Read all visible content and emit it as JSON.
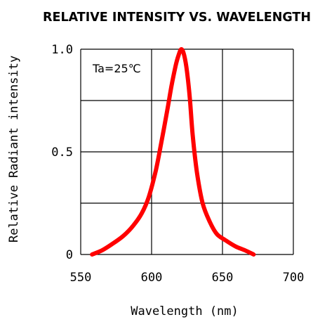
{
  "chart_data": {
    "type": "line",
    "title": "RELATIVE INTENSITY VS. WAVELENGTH",
    "xlabel": "Wavelength (nm)",
    "ylabel": "Relative Radiant intensity",
    "annotation": "Ta=25℃",
    "xlim": [
      550,
      700
    ],
    "ylim": [
      0,
      1.0
    ],
    "x_ticks": [
      {
        "value": 550,
        "label": "550"
      },
      {
        "value": 600,
        "label": "600"
      },
      {
        "value": 650,
        "label": "650"
      },
      {
        "value": 700,
        "label": "700"
      }
    ],
    "y_ticks": [
      {
        "value": 0,
        "label": "0"
      },
      {
        "value": 0.5,
        "label": "0.5"
      },
      {
        "value": 1.0,
        "label": "1.0"
      }
    ],
    "x_grid": [
      550,
      600,
      650,
      700
    ],
    "y_grid": [
      0,
      0.25,
      0.5,
      0.75,
      1.0
    ],
    "grid": true,
    "line_color": "#ff0000",
    "series": [
      {
        "x": [
          558,
          565,
          572,
          580,
          587,
          593,
          598,
          603,
          607,
          611,
          614,
          617,
          619,
          621,
          623,
          625,
          627,
          629,
          632,
          636,
          641,
          646,
          652,
          659,
          666,
          672
        ],
        "y": [
          0.0,
          0.02,
          0.05,
          0.09,
          0.14,
          0.2,
          0.28,
          0.41,
          0.55,
          0.7,
          0.82,
          0.92,
          0.97,
          1.0,
          0.97,
          0.89,
          0.76,
          0.58,
          0.4,
          0.25,
          0.16,
          0.1,
          0.07,
          0.04,
          0.02,
          0.0
        ]
      }
    ]
  }
}
